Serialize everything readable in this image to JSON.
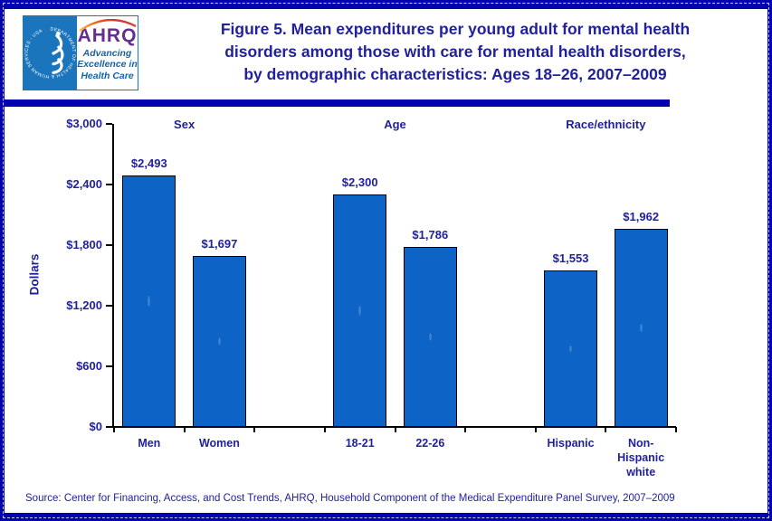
{
  "header": {
    "logo": {
      "seal_text": "DEPARTMENT OF HEALTH & HUMAN SERVICES - USA",
      "ahrq_acronym": "AHRQ",
      "tagline_lines": [
        "Advancing",
        "Excellence in",
        "Health Care"
      ]
    },
    "title_lines": [
      "Figure 5. Mean expenditures per young adult for mental health",
      "disorders among those with care for mental health disorders,",
      "by demographic characteristics: Ages 18–26, 2007–2009"
    ]
  },
  "chart_data": {
    "type": "bar",
    "title": "Figure 5. Mean expenditures per young adult for mental health disorders among those with care for mental health disorders, by demographic characteristics: Ages 18–26, 2007–2009",
    "ylabel": "Dollars",
    "xlabel": "",
    "ylim": [
      0,
      3000
    ],
    "ytick_values": [
      0,
      600,
      1200,
      1800,
      2400,
      3000
    ],
    "ytick_labels": [
      "$0",
      "$600",
      "$1,200",
      "$1,800",
      "$2,400",
      "$3,000"
    ],
    "grid": false,
    "legend": "none",
    "bar_color": "#0D63C6",
    "bar_border_color": "#000000",
    "groups": [
      {
        "label": "Sex",
        "bars": [
          {
            "category": "Men",
            "value": 2493,
            "value_label": "$2,493"
          },
          {
            "category": "Women",
            "value": 1697,
            "value_label": "$1,697"
          }
        ]
      },
      {
        "label": "Age",
        "bars": [
          {
            "category": "18-21",
            "value": 2300,
            "value_label": "$2,300"
          },
          {
            "category": "22-26",
            "value": 1786,
            "value_label": "$1,786"
          }
        ]
      },
      {
        "label": "Race/ethnicity",
        "bars": [
          {
            "category": "Hispanic",
            "value": 1553,
            "value_label": "$1,553"
          },
          {
            "category": "Non-Hispanic white",
            "value": 1962,
            "value_label": "$1,962"
          }
        ]
      }
    ]
  },
  "source": "Source: Center for Financing, Access, and Cost Trends, AHRQ, Household Component of the Medical Expenditure Panel Survey, 2007–2009",
  "colors": {
    "navy_text": "#21219C",
    "frame_blue": "#0202AE",
    "bar_blue": "#0D63C6",
    "hhs_blue": "#1B75BC",
    "ahrq_purple": "#662D91",
    "tagline_blue": "#1464A8"
  }
}
